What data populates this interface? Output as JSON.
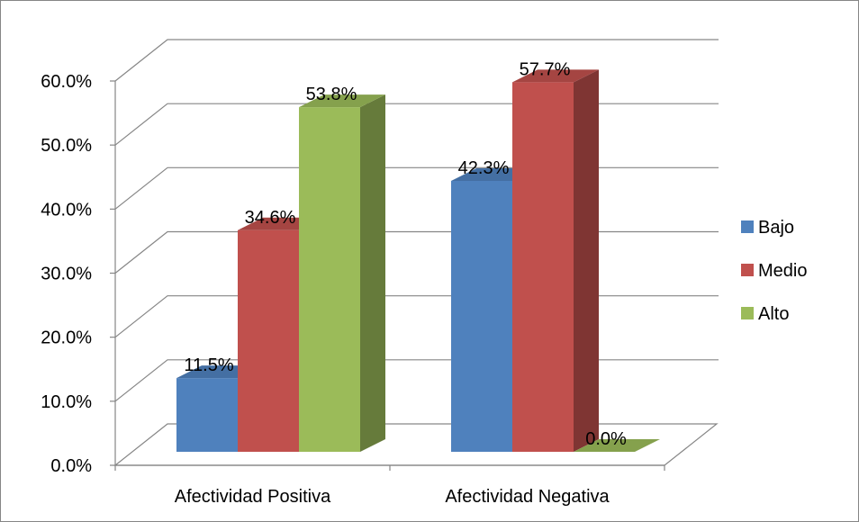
{
  "chart_data": {
    "type": "bar",
    "categories": [
      "Afectividad Positiva",
      "Afectividad Negativa"
    ],
    "series": [
      {
        "name": "Bajo",
        "values": [
          11.5,
          42.3
        ],
        "color": "#4F81BD"
      },
      {
        "name": "Medio",
        "values": [
          34.6,
          57.7
        ],
        "color": "#C0504D"
      },
      {
        "name": "Alto",
        "values": [
          53.8,
          0.0
        ],
        "color": "#9BBB59"
      }
    ],
    "value_labels": [
      [
        "11.5%",
        "42.3%"
      ],
      [
        "34.6%",
        "57.7%"
      ],
      [
        "53.8%",
        "0.0%"
      ]
    ],
    "y_ticks": [
      "0.0%",
      "10.0%",
      "20.0%",
      "30.0%",
      "40.0%",
      "50.0%",
      "60.0%"
    ],
    "ylim": [
      0,
      60
    ],
    "grid": true,
    "legend_position": "right",
    "three_d": true
  }
}
